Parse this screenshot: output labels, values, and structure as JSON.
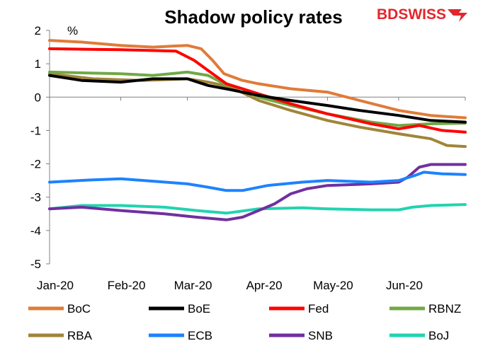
{
  "logo": {
    "text": "BDSWISS",
    "color": "#e3262c"
  },
  "chart_data": {
    "type": "line",
    "title": "Shadow policy rates",
    "ylabel": "%",
    "xlabel": "",
    "ylim": [
      -5,
      2
    ],
    "yticks": [
      2,
      1,
      0,
      -1,
      -2,
      -3,
      -4,
      -5
    ],
    "x_start": "2020-01-01",
    "x_end": "2020-06-30",
    "x_tick_labels": [
      "Jan-20",
      "Feb-20",
      "Mar-20",
      "Apr-20",
      "May-20",
      "Jun-20"
    ],
    "x_tick_dates": [
      "2020-01-01",
      "2020-02-01",
      "2020-03-01",
      "2020-04-01",
      "2020-05-01",
      "2020-06-01"
    ],
    "grid": false,
    "legend_position": "bottom",
    "series": [
      {
        "name": "BoC",
        "color": "#e07b39",
        "data": [
          [
            "2020-01-01",
            1.7
          ],
          [
            "2020-01-15",
            1.65
          ],
          [
            "2020-02-01",
            1.55
          ],
          [
            "2020-02-15",
            1.5
          ],
          [
            "2020-03-01",
            1.55
          ],
          [
            "2020-03-07",
            1.45
          ],
          [
            "2020-03-12",
            1.1
          ],
          [
            "2020-03-17",
            0.7
          ],
          [
            "2020-03-25",
            0.5
          ],
          [
            "2020-04-01",
            0.4
          ],
          [
            "2020-04-15",
            0.25
          ],
          [
            "2020-05-01",
            0.15
          ],
          [
            "2020-05-15",
            -0.1
          ],
          [
            "2020-06-01",
            -0.4
          ],
          [
            "2020-06-15",
            -0.55
          ],
          [
            "2020-06-30",
            -0.62
          ]
        ]
      },
      {
        "name": "BoE",
        "color": "#000000",
        "data": [
          [
            "2020-01-01",
            0.65
          ],
          [
            "2020-01-15",
            0.5
          ],
          [
            "2020-02-01",
            0.45
          ],
          [
            "2020-02-15",
            0.55
          ],
          [
            "2020-03-01",
            0.55
          ],
          [
            "2020-03-10",
            0.35
          ],
          [
            "2020-03-20",
            0.22
          ],
          [
            "2020-04-01",
            0.05
          ],
          [
            "2020-04-15",
            -0.1
          ],
          [
            "2020-05-01",
            -0.25
          ],
          [
            "2020-05-15",
            -0.4
          ],
          [
            "2020-06-01",
            -0.55
          ],
          [
            "2020-06-15",
            -0.7
          ],
          [
            "2020-06-30",
            -0.75
          ]
        ]
      },
      {
        "name": "Fed",
        "color": "#ff0000",
        "data": [
          [
            "2020-01-01",
            1.45
          ],
          [
            "2020-02-01",
            1.42
          ],
          [
            "2020-02-25",
            1.38
          ],
          [
            "2020-03-04",
            1.1
          ],
          [
            "2020-03-10",
            0.8
          ],
          [
            "2020-03-18",
            0.4
          ],
          [
            "2020-04-01",
            0.1
          ],
          [
            "2020-04-15",
            -0.2
          ],
          [
            "2020-05-01",
            -0.5
          ],
          [
            "2020-05-20",
            -0.8
          ],
          [
            "2020-06-01",
            -0.95
          ],
          [
            "2020-06-10",
            -0.85
          ],
          [
            "2020-06-20",
            -1.0
          ],
          [
            "2020-06-30",
            -1.05
          ]
        ]
      },
      {
        "name": "RBNZ",
        "color": "#70a845",
        "data": [
          [
            "2020-01-01",
            0.75
          ],
          [
            "2020-02-01",
            0.7
          ],
          [
            "2020-02-15",
            0.65
          ],
          [
            "2020-03-01",
            0.75
          ],
          [
            "2020-03-10",
            0.65
          ],
          [
            "2020-03-17",
            0.4
          ],
          [
            "2020-03-25",
            0.25
          ],
          [
            "2020-04-01",
            0.0
          ],
          [
            "2020-04-15",
            -0.25
          ],
          [
            "2020-05-01",
            -0.5
          ],
          [
            "2020-05-20",
            -0.75
          ],
          [
            "2020-06-01",
            -0.85
          ],
          [
            "2020-06-15",
            -0.8
          ],
          [
            "2020-06-30",
            -0.78
          ]
        ]
      },
      {
        "name": "RBA",
        "color": "#a08538",
        "data": [
          [
            "2020-01-01",
            0.7
          ],
          [
            "2020-01-20",
            0.55
          ],
          [
            "2020-02-10",
            0.5
          ],
          [
            "2020-03-01",
            0.55
          ],
          [
            "2020-03-10",
            0.45
          ],
          [
            "2020-03-20",
            0.3
          ],
          [
            "2020-04-01",
            -0.1
          ],
          [
            "2020-04-15",
            -0.4
          ],
          [
            "2020-05-01",
            -0.7
          ],
          [
            "2020-05-15",
            -0.9
          ],
          [
            "2020-06-01",
            -1.1
          ],
          [
            "2020-06-15",
            -1.25
          ],
          [
            "2020-06-22",
            -1.45
          ],
          [
            "2020-06-30",
            -1.48
          ]
        ]
      },
      {
        "name": "ECB",
        "color": "#1e82ff",
        "data": [
          [
            "2020-01-01",
            -2.55
          ],
          [
            "2020-01-20",
            -2.48
          ],
          [
            "2020-02-01",
            -2.45
          ],
          [
            "2020-02-15",
            -2.52
          ],
          [
            "2020-03-01",
            -2.6
          ],
          [
            "2020-03-10",
            -2.7
          ],
          [
            "2020-03-18",
            -2.8
          ],
          [
            "2020-03-25",
            -2.8
          ],
          [
            "2020-04-05",
            -2.65
          ],
          [
            "2020-04-20",
            -2.55
          ],
          [
            "2020-05-01",
            -2.5
          ],
          [
            "2020-05-20",
            -2.55
          ],
          [
            "2020-06-01",
            -2.5
          ],
          [
            "2020-06-08",
            -2.35
          ],
          [
            "2020-06-12",
            -2.25
          ],
          [
            "2020-06-20",
            -2.3
          ],
          [
            "2020-06-30",
            -2.32
          ]
        ]
      },
      {
        "name": "SNB",
        "color": "#7030a0",
        "data": [
          [
            "2020-01-01",
            -3.35
          ],
          [
            "2020-01-15",
            -3.3
          ],
          [
            "2020-02-01",
            -3.4
          ],
          [
            "2020-02-20",
            -3.5
          ],
          [
            "2020-03-05",
            -3.6
          ],
          [
            "2020-03-18",
            -3.68
          ],
          [
            "2020-03-25",
            -3.6
          ],
          [
            "2020-04-01",
            -3.4
          ],
          [
            "2020-04-08",
            -3.2
          ],
          [
            "2020-04-15",
            -2.9
          ],
          [
            "2020-04-22",
            -2.75
          ],
          [
            "2020-05-01",
            -2.65
          ],
          [
            "2020-05-20",
            -2.6
          ],
          [
            "2020-06-01",
            -2.55
          ],
          [
            "2020-06-05",
            -2.4
          ],
          [
            "2020-06-10",
            -2.1
          ],
          [
            "2020-06-15",
            -2.02
          ],
          [
            "2020-06-30",
            -2.02
          ]
        ]
      },
      {
        "name": "BoJ",
        "color": "#22d3b0",
        "data": [
          [
            "2020-01-01",
            -3.35
          ],
          [
            "2020-01-15",
            -3.25
          ],
          [
            "2020-02-01",
            -3.25
          ],
          [
            "2020-02-20",
            -3.3
          ],
          [
            "2020-03-05",
            -3.4
          ],
          [
            "2020-03-18",
            -3.48
          ],
          [
            "2020-04-01",
            -3.35
          ],
          [
            "2020-04-20",
            -3.32
          ],
          [
            "2020-05-01",
            -3.35
          ],
          [
            "2020-05-20",
            -3.38
          ],
          [
            "2020-06-01",
            -3.38
          ],
          [
            "2020-06-07",
            -3.3
          ],
          [
            "2020-06-15",
            -3.25
          ],
          [
            "2020-06-30",
            -3.22
          ]
        ]
      }
    ]
  }
}
